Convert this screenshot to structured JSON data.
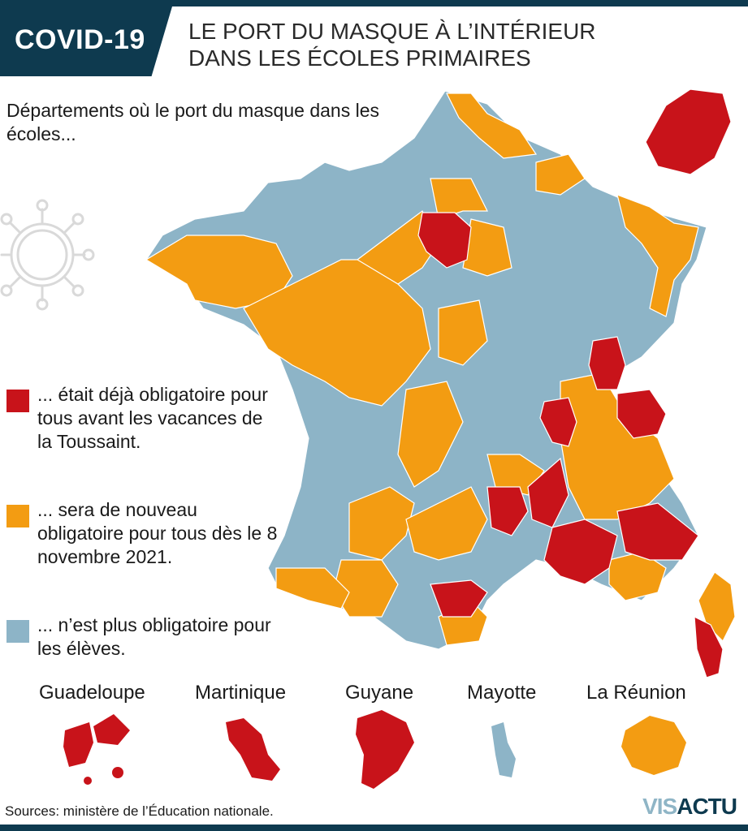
{
  "header": {
    "badge": "COVID-19",
    "title_line1": "LE PORT DU MASQUE À L’INTÉRIEUR",
    "title_line2": "DANS LES ÉCOLES PRIMAIRES"
  },
  "subtitle": "Départements où le port du masque dans les écoles...",
  "colors": {
    "red": "#c8131a",
    "orange": "#f39c12",
    "blue": "#8db4c7",
    "navy": "#0e3a4f"
  },
  "legend": [
    {
      "color": "red",
      "text": "... était déjà obligatoire pour tous avant les vacances de la Toussaint."
    },
    {
      "color": "orange",
      "text": "... sera de nouveau obligatoire pour tous dès le 8 novembre 2021."
    },
    {
      "color": "blue",
      "text": "... n’est plus obligatoire pour les élèves."
    }
  ],
  "overseas": [
    {
      "name": "Guadeloupe",
      "status": "red"
    },
    {
      "name": "Martinique",
      "status": "red"
    },
    {
      "name": "Guyane",
      "status": "red"
    },
    {
      "name": "Mayotte",
      "status": "blue"
    },
    {
      "name": "La Réunion",
      "status": "orange"
    }
  ],
  "source": "Sources: ministère de l’Éducation nationale.",
  "logo": {
    "part1": "VIS",
    "part2": "ACTU"
  },
  "icons": [
    "virus-icon"
  ]
}
